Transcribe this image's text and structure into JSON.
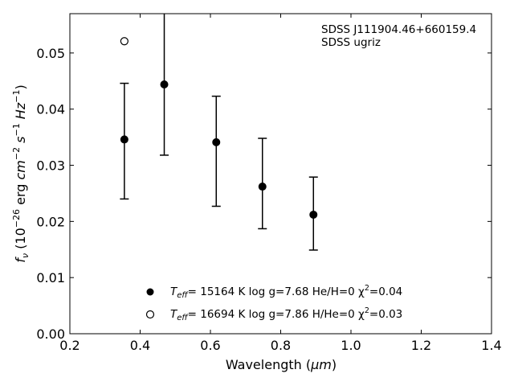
{
  "chart_data": {
    "type": "scatter",
    "xlabel_main": "Wavelength (",
    "xlabel_unit": "μm",
    "xlabel_close": ")",
    "ylabel_f": "f",
    "ylabel_sub": "ν",
    "ylabel_open": " (10",
    "ylabel_exp1": "−26",
    "ylabel_erg": " erg ",
    "ylabel_cm": "cm",
    "ylabel_exp2": "−2",
    "ylabel_s": " s",
    "ylabel_exp3": "−1",
    "ylabel_hz": " Hz",
    "ylabel_exp4": "−1",
    "ylabel_close": ")",
    "xlim": [
      0.2,
      1.4
    ],
    "ylim": [
      0.0,
      0.057
    ],
    "x_ticks": [
      0.2,
      0.4,
      0.6,
      0.8,
      1.0,
      1.2,
      1.4
    ],
    "x_tick_labels": [
      "0.2",
      "0.4",
      "0.6",
      "0.8",
      "1.0",
      "1.2",
      "1.4"
    ],
    "y_ticks": [
      0.0,
      0.01,
      0.02,
      0.03,
      0.04,
      0.05
    ],
    "y_tick_labels": [
      "0.00",
      "0.01",
      "0.02",
      "0.03",
      "0.04",
      "0.05"
    ],
    "annotations": [
      "SDSS J111904.46+660159.4",
      "SDSS ugriz"
    ],
    "observed": {
      "x": [
        0.3551,
        0.4686,
        0.6166,
        0.748,
        0.8932
      ],
      "y": [
        0.0346,
        0.0444,
        0.0341,
        0.0262,
        0.0212
      ],
      "yerr_low": [
        0.024,
        0.0318,
        0.0227,
        0.0187,
        0.0149
      ],
      "yerr_high": [
        0.0446,
        0.0575,
        0.0423,
        0.0348,
        0.0279
      ],
      "cap_low": [
        true,
        true,
        true,
        true,
        true
      ],
      "cap_high": [
        true,
        false,
        true,
        true,
        true
      ]
    },
    "series": [
      {
        "marker": "filled-circle",
        "x": [
          0.3551,
          0.4686,
          0.6166,
          0.748,
          0.8932
        ],
        "y": [
          0.0346,
          0.0444,
          0.0341,
          0.0262,
          0.0212
        ],
        "legend_teff": "T",
        "legend_teff_sub": "eff",
        "legend_rest": "= 15164 K  log g=7.68  He/H=0  χ",
        "legend_sup": "2",
        "legend_end": "=0.04"
      },
      {
        "marker": "open-circle",
        "x": [
          0.3551
        ],
        "y": [
          0.0521
        ],
        "legend_teff": "T",
        "legend_teff_sub": "eff",
        "legend_rest": "= 16694 K  log g=7.86  H/He=0  χ",
        "legend_sup": "2",
        "legend_end": "=0.03"
      }
    ]
  }
}
